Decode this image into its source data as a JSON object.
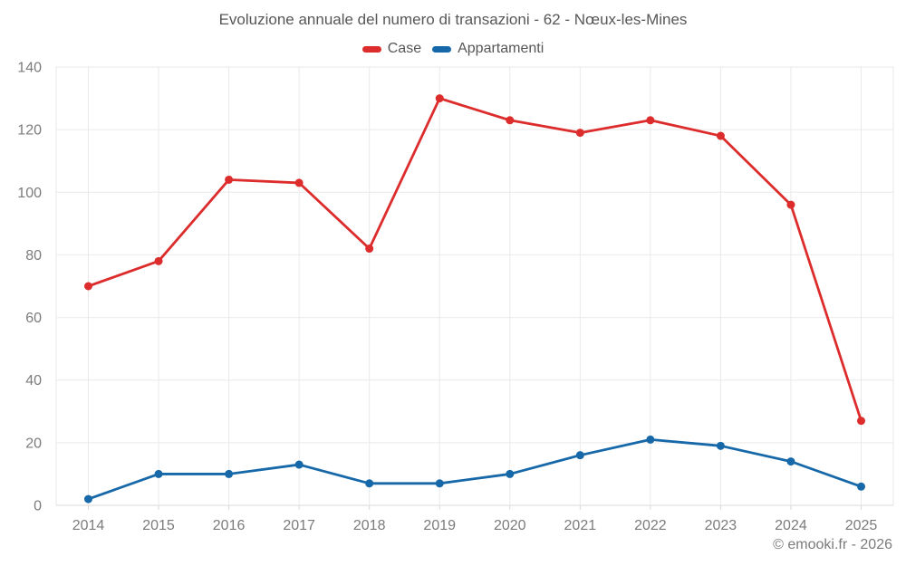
{
  "chart_data": {
    "type": "line",
    "title": "Evoluzione annuale del numero di transazioni - 62 - Nœux-les-Mines",
    "categories": [
      "2014",
      "2015",
      "2016",
      "2017",
      "2018",
      "2019",
      "2020",
      "2021",
      "2022",
      "2023",
      "2024",
      "2025"
    ],
    "series": [
      {
        "name": "Case",
        "color": "#dc2c2c",
        "values": [
          70,
          78,
          104,
          103,
          82,
          130,
          123,
          119,
          123,
          118,
          96,
          27
        ]
      },
      {
        "name": "Appartamenti",
        "color": "#1668a8",
        "values": [
          2,
          10,
          10,
          13,
          7,
          7,
          10,
          16,
          21,
          19,
          14,
          6
        ]
      }
    ],
    "ylim": [
      0,
      140
    ],
    "ytick_step": 20,
    "grid": true,
    "legend_position": "top",
    "xlabel": "",
    "ylabel": ""
  },
  "footer": {
    "credit": "© emooki.fr - 2026"
  },
  "colors": {
    "case_red": "#dc2c2c",
    "appartamenti_blue": "#1668a8",
    "gridline": "#e9e9e9",
    "axis_line": "#d9d9d9",
    "axis_label": "#7b7b7b",
    "title_text": "#575757",
    "background": "#ffffff"
  }
}
